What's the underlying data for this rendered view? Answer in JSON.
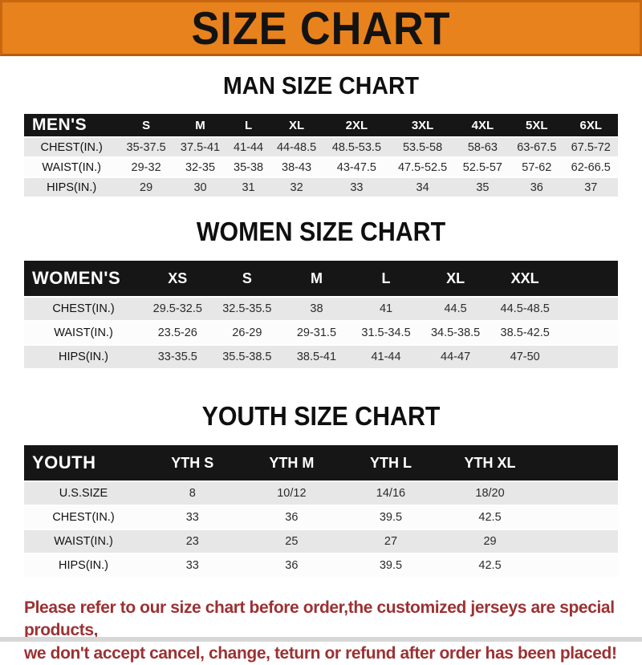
{
  "banner": {
    "title": "SIZE CHART",
    "bg_color": "#E8821C",
    "border_color": "#C96711"
  },
  "colors": {
    "header_bar": "#161616",
    "row_gray": "#E7E7E7",
    "row_white": "#FCFCFC",
    "note_red": "#9C3133"
  },
  "sections": [
    {
      "id": "men",
      "heading": "MAN SIZE CHART",
      "corner_label": "MEN'S",
      "columns": [
        "S",
        "M",
        "L",
        "XL",
        "2XL",
        "3XL",
        "4XL",
        "5XL",
        "6XL"
      ],
      "filler": false,
      "rows": [
        {
          "label": "CHEST(IN.)",
          "values": [
            "35-37.5",
            "37.5-41",
            "41-44",
            "44-48.5",
            "48.5-53.5",
            "53.5-58",
            "58-63",
            "63-67.5",
            "67.5-72"
          ]
        },
        {
          "label": "WAIST(IN.)",
          "values": [
            "29-32",
            "32-35",
            "35-38",
            "38-43",
            "43-47.5",
            "47.5-52.5",
            "52.5-57",
            "57-62",
            "62-66.5"
          ]
        },
        {
          "label": "HIPS(IN.)",
          "values": [
            "29",
            "30",
            "31",
            "32",
            "33",
            "34",
            "35",
            "36",
            "37"
          ]
        }
      ]
    },
    {
      "id": "women",
      "heading": "WOMEN SIZE CHART",
      "corner_label": "WOMEN'S",
      "columns": [
        "XS",
        "S",
        "M",
        "L",
        "XL",
        "XXL"
      ],
      "filler": true,
      "rows": [
        {
          "label": "CHEST(IN.)",
          "values": [
            "29.5-32.5",
            "32.5-35.5",
            "38",
            "41",
            "44.5",
            "44.5-48.5"
          ]
        },
        {
          "label": "WAIST(IN.)",
          "values": [
            "23.5-26",
            "26-29",
            "29-31.5",
            "31.5-34.5",
            "34.5-38.5",
            "38.5-42.5"
          ]
        },
        {
          "label": "HIPS(IN.)",
          "values": [
            "33-35.5",
            "35.5-38.5",
            "38.5-41",
            "41-44",
            "44-47",
            "47-50"
          ]
        }
      ]
    },
    {
      "id": "youth",
      "heading": "YOUTH SIZE CHART",
      "corner_label": "YOUTH",
      "columns": [
        "YTH S",
        "YTH M",
        "YTH L",
        "YTH XL"
      ],
      "filler": true,
      "rows": [
        {
          "label": "U.S.SIZE",
          "values": [
            "8",
            "10/12",
            "14/16",
            "18/20"
          ]
        },
        {
          "label": "CHEST(IN.)",
          "values": [
            "33",
            "36",
            "39.5",
            "42.5"
          ]
        },
        {
          "label": "WAIST(IN.)",
          "values": [
            "23",
            "25",
            "27",
            "29"
          ]
        },
        {
          "label": "HIPS(IN.)",
          "values": [
            "33",
            "36",
            "39.5",
            "42.5"
          ]
        }
      ]
    }
  ],
  "footer": {
    "line1": "Please refer to our size chart before order,the customized jerseys are special products,",
    "line2": "we don't accept cancel, change, teturn or refund after order has been placed!"
  }
}
